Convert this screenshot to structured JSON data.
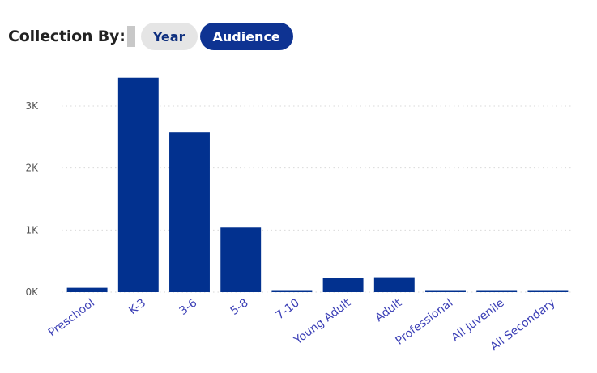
{
  "header": {
    "label": "Collection By:",
    "toggles": [
      "Year",
      "Audience"
    ],
    "selected": "Audience"
  },
  "colors": {
    "bar": "#02318f",
    "active_toggle": "#0e3392",
    "inactive_toggle": "#e5e5e5",
    "tick_label": "#3b3fb6"
  },
  "chart_data": {
    "type": "bar",
    "categories": [
      "Preschool",
      "K-3",
      "3-6",
      "5-8",
      "7-10",
      "Young Adult",
      "Adult",
      "Professional",
      "All Juvenile",
      "All Secondary"
    ],
    "values": [
      70,
      3460,
      2580,
      1040,
      10,
      230,
      240,
      10,
      10,
      10
    ],
    "ylim": [
      0,
      3600
    ],
    "yticks": [
      0,
      1000,
      2000,
      3000
    ],
    "ytick_labels": [
      "0K",
      "1K",
      "2K",
      "3K"
    ],
    "grid": true
  }
}
